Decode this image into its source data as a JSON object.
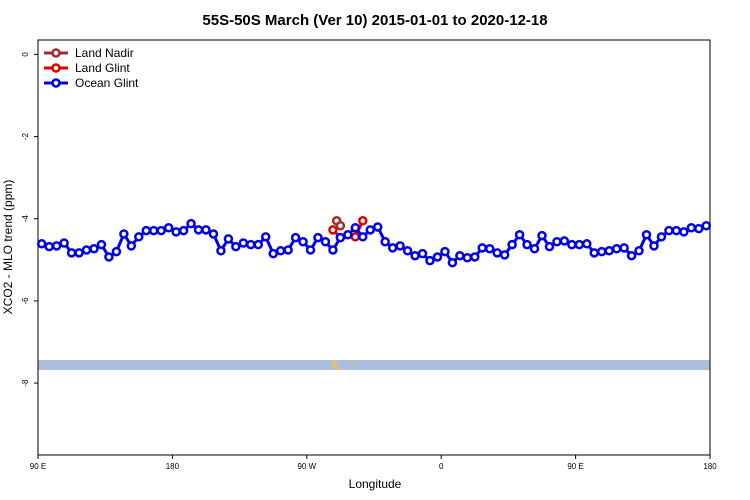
{
  "chart_data": {
    "type": "line",
    "title": "55S-50S March (Ver 10)   2015-01-01 to 2020-12-18",
    "x_label": "Longitude",
    "y_label": "XCO2 - MLO trend (ppm)",
    "xlim": [
      90,
      540
    ],
    "ylim": [
      -9.75,
      0.35
    ],
    "xticks": [
      {
        "value": 90,
        "label": "90 E"
      },
      180,
      {
        "value": 270,
        "label": "90 W"
      },
      {
        "value": 360,
        "label": "0"
      },
      {
        "value": 450,
        "label": "90 E"
      },
      {
        "value": 540,
        "label": "180"
      }
    ],
    "yticks": [
      0,
      -2,
      -4,
      -6,
      -8
    ],
    "legend": "top-left",
    "series": [
      {
        "name": "Land Nadir",
        "color": "#a52a2a",
        "x": [
          290,
          292.5
        ],
        "values": [
          -4.05,
          -4.17
        ]
      },
      {
        "name": "Land Glint",
        "color": "#e00000",
        "x": [
          287.5,
          292.5,
          302.5,
          307.5
        ],
        "values": [
          -4.27,
          -4.46,
          -4.44,
          -4.05
        ]
      },
      {
        "name": "Ocean Glint",
        "color": "#0000ee",
        "x": [
          92.5,
          97.5,
          102.5,
          107.5,
          112.5,
          117.5,
          122.5,
          127.5,
          132.5,
          137.5,
          142.5,
          147.5,
          152.5,
          157.5,
          162.5,
          167.5,
          172.5,
          177.5,
          182.5,
          187.5,
          192.5,
          197.5,
          202.5,
          207.5,
          212.5,
          217.5,
          222.5,
          227.5,
          232.5,
          237.5,
          242.5,
          247.5,
          252.5,
          257.5,
          262.5,
          267.5,
          272.5,
          277.5,
          282.5,
          287.5,
          292.5,
          297.5,
          302.5,
          307.5,
          312.5,
          317.5,
          322.5,
          327.5,
          332.5,
          337.5,
          342.5,
          347.5,
          352.5,
          357.5,
          362.5,
          367.5,
          372.5,
          377.5,
          382.5,
          387.5,
          392.5,
          397.5,
          402.5,
          407.5,
          412.5,
          417.5,
          422.5,
          427.5,
          432.5,
          437.5,
          442.5,
          447.5,
          452.5,
          457.5,
          462.5,
          467.5,
          472.5,
          477.5,
          482.5,
          487.5,
          492.5,
          497.5,
          502.5,
          507.5,
          512.5,
          517.5,
          522.5,
          527.5,
          532.5,
          537.5
        ],
        "values": [
          -4.61,
          -4.68,
          -4.66,
          -4.59,
          -4.83,
          -4.83,
          -4.76,
          -4.73,
          -4.63,
          -4.93,
          -4.8,
          -4.37,
          -4.66,
          -4.44,
          -4.29,
          -4.29,
          -4.29,
          -4.22,
          -4.32,
          -4.29,
          -4.12,
          -4.27,
          -4.27,
          -4.37,
          -4.78,
          -4.49,
          -4.68,
          -4.59,
          -4.63,
          -4.63,
          -4.44,
          -4.85,
          -4.78,
          -4.76,
          -4.46,
          -4.56,
          -4.76,
          -4.46,
          -4.56,
          -4.76,
          -4.46,
          -4.39,
          -4.22,
          -4.44,
          -4.27,
          -4.2,
          -4.56,
          -4.71,
          -4.66,
          -4.78,
          -4.9,
          -4.85,
          -5.02,
          -4.93,
          -4.8,
          -5.07,
          -4.9,
          -4.95,
          -4.93,
          -4.71,
          -4.73,
          -4.83,
          -4.88,
          -4.63,
          -4.39,
          -4.63,
          -4.73,
          -4.41,
          -4.68,
          -4.56,
          -4.54,
          -4.63,
          -4.63,
          -4.61,
          -4.83,
          -4.8,
          -4.78,
          -4.73,
          -4.71,
          -4.9,
          -4.78,
          -4.39,
          -4.66,
          -4.44,
          -4.29,
          -4.29,
          -4.32,
          -4.22,
          -4.24,
          -4.17
        ]
      }
    ]
  }
}
